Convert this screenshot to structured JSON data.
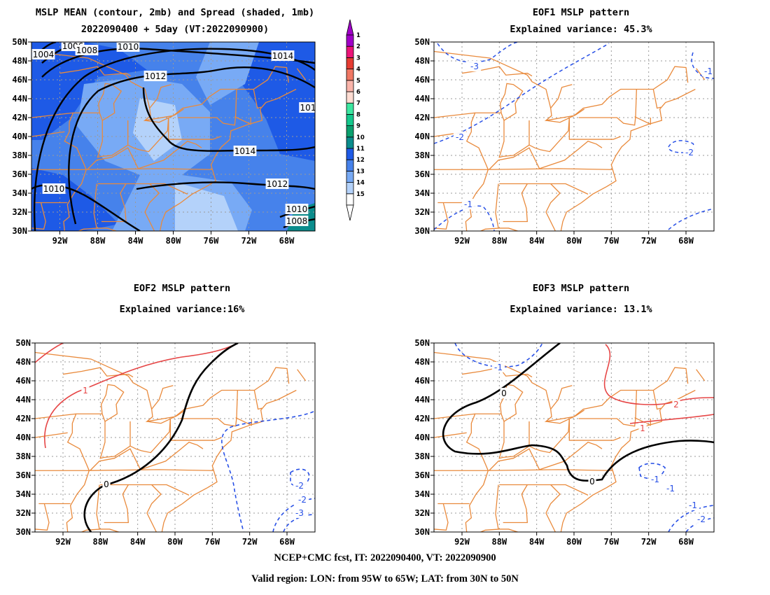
{
  "panels": [
    {
      "title1": "MSLP MEAN (contour, 2mb) and Spread (shaded, 1mb)",
      "title2": "2022090400 + 5day (VT:2022090900)"
    },
    {
      "title1": "EOF1 MSLP pattern",
      "title2": "Explained variance: 45.3%"
    },
    {
      "title1": "EOF2 MSLP pattern",
      "title2": "Explained variance:16%"
    },
    {
      "title1": "EOF3 MSLP pattern",
      "title2": "Explained variance: 13.1%"
    }
  ],
  "axes": {
    "lat_labels": [
      "50N",
      "48N",
      "46N",
      "44N",
      "42N",
      "40N",
      "38N",
      "36N",
      "34N",
      "32N",
      "30N"
    ],
    "lon_labels": [
      "92W",
      "88W",
      "84W",
      "80W",
      "76W",
      "72W",
      "68W"
    ]
  },
  "colorbar": {
    "labels": [
      "1",
      "2",
      "3",
      "4",
      "5",
      "6",
      "7",
      "8",
      "9",
      "10",
      "11",
      "12",
      "13",
      "14",
      "15"
    ],
    "colors": [
      "#ffffff",
      "#b4d2fa",
      "#78aaf5",
      "#4682eb",
      "#1e5ae6",
      "#0a8c8c",
      "#0aa06e",
      "#14c88c",
      "#3ce6a0",
      "#ffdcd2",
      "#fab4aa",
      "#f07864",
      "#e63c32",
      "#eb1478",
      "#a000c8"
    ]
  },
  "mean_contour_labels": [
    "1004",
    "1006",
    "1008",
    "1010",
    "1012",
    "1014",
    "1014",
    "1012",
    "1010",
    "1010",
    "1008",
    "101"
  ],
  "eof1_contour_labels": [
    "-3",
    "-2",
    "-1",
    "-1",
    "-2"
  ],
  "eof2_contour_labels": [
    "1",
    "0",
    "-2",
    "-2",
    "-3"
  ],
  "eof3_contour_labels": [
    "-1",
    "0",
    "0",
    "2",
    "1",
    "-1",
    "-1",
    "-1",
    "-2"
  ],
  "footer": {
    "line1": "NCEP+CMC fcst, IT: 2022090400, VT: 2022090900",
    "line2": "Valid region: LON: from 95W to 65W; LAT: from 30N to 50N"
  }
}
